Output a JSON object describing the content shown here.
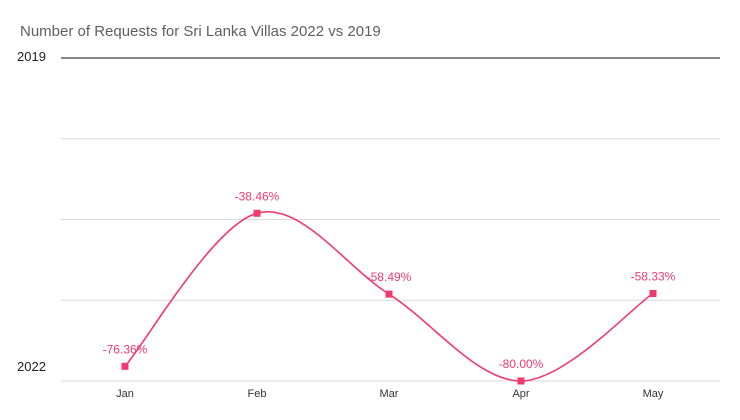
{
  "chart_data": {
    "type": "line",
    "title": "Number of Requests for Sri Lanka Villas 2022 vs 2019",
    "categories": [
      "Jan",
      "Feb",
      "Mar",
      "Apr",
      "May"
    ],
    "series": [
      {
        "values": [
          -76.36,
          -38.46,
          -58.49,
          -80.0,
          -58.33
        ],
        "labels": [
          "-76.36%",
          "-38.46%",
          "-58.49%",
          "-80.00%",
          "-58.33%"
        ]
      }
    ],
    "ylim": [
      -80,
      0
    ],
    "ytick_labels": {
      "top": "2019",
      "bottom": "2022"
    },
    "grid": true,
    "legend": "none",
    "colors": {
      "series": "#f03a6f",
      "grid": "#d9d9d9",
      "axis": "#5f5f5f"
    }
  }
}
